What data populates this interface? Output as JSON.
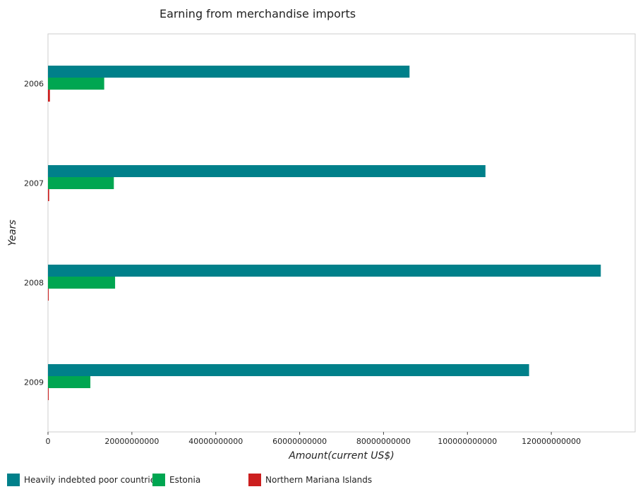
{
  "chart_data": {
    "type": "bar",
    "orientation": "horizontal",
    "title": "Earning from merchandise imports",
    "xlabel": "Amount(current US$)",
    "ylabel": "Years",
    "categories": [
      "2006",
      "2007",
      "2008",
      "2009"
    ],
    "series": [
      {
        "name": "Heavily indebted poor countries",
        "color": "#00808a",
        "values": [
          86200000000,
          104300000000,
          131800000000,
          114700000000
        ]
      },
      {
        "name": "Estonia",
        "color": "#00a651",
        "values": [
          13400000000,
          15700000000,
          16000000000,
          10100000000
        ]
      },
      {
        "name": "Northern Mariana Islands",
        "color": "#cc1f1f",
        "values": [
          460000000,
          280000000,
          150000000,
          40000000
        ]
      }
    ],
    "xlim": [
      0,
      140000000000
    ],
    "xticks": [
      0,
      20000000000,
      40000000000,
      60000000000,
      80000000000,
      100000000000,
      120000000000
    ],
    "xtick_labels": [
      "0",
      "20000000000",
      "40000000000",
      "60000000000",
      "80000000000",
      "100000000000",
      "120000000000"
    ],
    "grid": false,
    "legend_position": "bottom-left"
  }
}
